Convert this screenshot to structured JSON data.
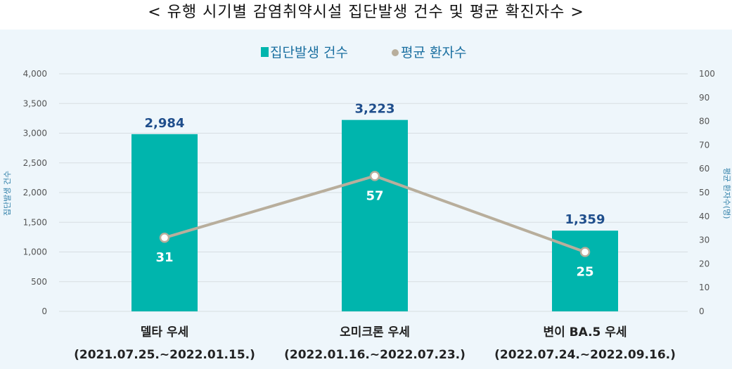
{
  "title": "< 유행 시기별 감염취약시설 집단발생 건수 및 평균 확진자수 >",
  "chart_data": {
    "type": "bar",
    "categories": [
      {
        "name": "델타 우세",
        "period": "(2021.07.25.~2022.01.15.)"
      },
      {
        "name": "오미크론 우세",
        "period": "(2022.01.16.~2022.07.23.)"
      },
      {
        "name": "변이 BA.5 우세",
        "period": "(2022.07.24.~2022.09.16.)"
      }
    ],
    "series": [
      {
        "name": "집단발생 건수",
        "type": "bar",
        "axis": "left",
        "values": [
          2984,
          3223,
          1359
        ],
        "labels": [
          "2,984",
          "3,223",
          "1,359"
        ],
        "color": "#00b5ad"
      },
      {
        "name": "평균 환자수",
        "type": "line",
        "axis": "right",
        "values": [
          31,
          57,
          25
        ],
        "labels": [
          "31",
          "57",
          "25"
        ],
        "color": "#b8ae9c"
      }
    ],
    "ylabel_left": "집단발생 건수",
    "ylabel_right": "평균 환자수(명)",
    "ylim_left": [
      0,
      4000
    ],
    "ylim_right": [
      0,
      100
    ],
    "yticks_left": [
      "0",
      "500",
      "1,000",
      "1,500",
      "2,000",
      "2,500",
      "3,000",
      "3,500",
      "4,000"
    ],
    "yticks_right": [
      "0",
      "10",
      "20",
      "30",
      "40",
      "50",
      "60",
      "70",
      "80",
      "90",
      "100"
    ],
    "legend_position": "top",
    "grid": true
  }
}
